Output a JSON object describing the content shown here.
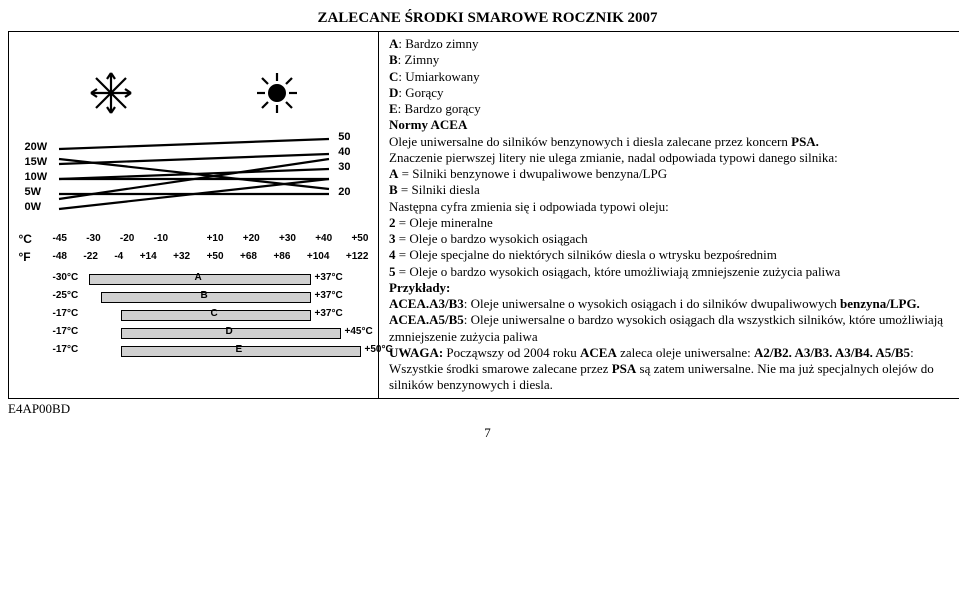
{
  "title": "ZALECANE ŚRODKI SMAROWE ROCZNIK 2007",
  "image_code": "E4AP00BD",
  "page_number": "7",
  "diagram": {
    "left_labels": {
      "w20": "20W",
      "w15": "15W",
      "w10": "10W",
      "w5": "5W",
      "w0": "0W"
    },
    "right_labels": {
      "r50": "50",
      "r40": "40",
      "r30": "30",
      "r20": "20"
    },
    "c_unit": "°C",
    "f_unit": "°F",
    "c_ticks": [
      "-45",
      "-30",
      "-20",
      "-10",
      "",
      "+10",
      "+20",
      "+30",
      "+40",
      "+50"
    ],
    "f_ticks": [
      "-48",
      "-22",
      "-4",
      "+14",
      "+32",
      "+50",
      "+68",
      "+86",
      "+104",
      "+122"
    ],
    "bars": [
      {
        "left": "-30°C",
        "letter": "A",
        "right": "+37°C",
        "start": 70,
        "end": 290
      },
      {
        "left": "-25°C",
        "letter": "B",
        "right": "+37°C",
        "start": 82,
        "end": 290
      },
      {
        "left": "-17°C",
        "letter": "C",
        "right": "+37°C",
        "start": 102,
        "end": 290
      },
      {
        "left": "-17°C",
        "letter": "D",
        "right": "+45°C",
        "start": 102,
        "end": 320
      },
      {
        "left": "-17°C",
        "letter": "E",
        "right": "+50°C",
        "start": 102,
        "end": 340
      }
    ]
  },
  "text": {
    "climate_head_A": "A",
    "climate_val_A": ": Bardzo zimny",
    "climate_head_B": "B",
    "climate_val_B": ": Zimny",
    "climate_head_C": "C",
    "climate_val_C": ": Umiarkowany",
    "climate_head_D": "D",
    "climate_val_D": ": Gorący",
    "climate_head_E": "E",
    "climate_val_E": ": Bardzo gorący",
    "acea_head": "Normy ACEA",
    "acea_intro": "Oleje uniwersalne do silników benzynowych i diesla zalecane przez koncern ",
    "acea_psa": "PSA.",
    "para1": "Znaczenie pierwszej litery nie ulega zmianie, nadal odpowiada typowi danego silnika:",
    "line_A_1": "A",
    "line_A_2": " = Silniki benzynowe i dwupaliwowe benzyna/LPG",
    "line_B_1": "B",
    "line_B_2": " = Silniki diesla",
    "para2": "Następna cyfra zmienia się i odpowiada typowi oleju:",
    "n2_1": "2",
    "n2_2": " = Oleje mineralne",
    "n3_1": "3",
    "n3_2": " = Oleje o bardzo wysokich osiągach",
    "n4_1": "4",
    "n4_2": " = Oleje specjalne do niektórych silników diesla o wtrysku bezpośrednim",
    "n5_1": "5",
    "n5_2": " = Oleje o bardzo wysokich osiągach, które umożliwiają zmniejszenie zużycia paliwa",
    "examples_head": "Przykłady:",
    "ex1_a": "ACEA.A3/B3",
    "ex1_b": ": Oleje uniwersalne o wysokich osiągach i do silników dwupaliwowych ",
    "ex1_c": "benzyna/LPG.",
    "ex2_a": "ACEA.A5/B5",
    "ex2_b": ": Oleje uniwersalne o bardzo wysokich osiągach dla wszystkich silników, które umożliwiają zmniejszenie zużycia paliwa",
    "note_a": "UWAGA:",
    "note_b": " Począwszy od 2004 roku ",
    "note_c": "ACEA",
    "note_d": " zaleca oleje uniwersalne: ",
    "note_e": "A2/B2. A3/B3. A3/B4. A5/B5",
    "note_f": ": Wszystkie środki smarowe zalecane przez ",
    "note_g": "PSA",
    "note_h": " są zatem uniwersalne. Nie ma już specjalnych olejów do silników benzynowych i diesla."
  }
}
